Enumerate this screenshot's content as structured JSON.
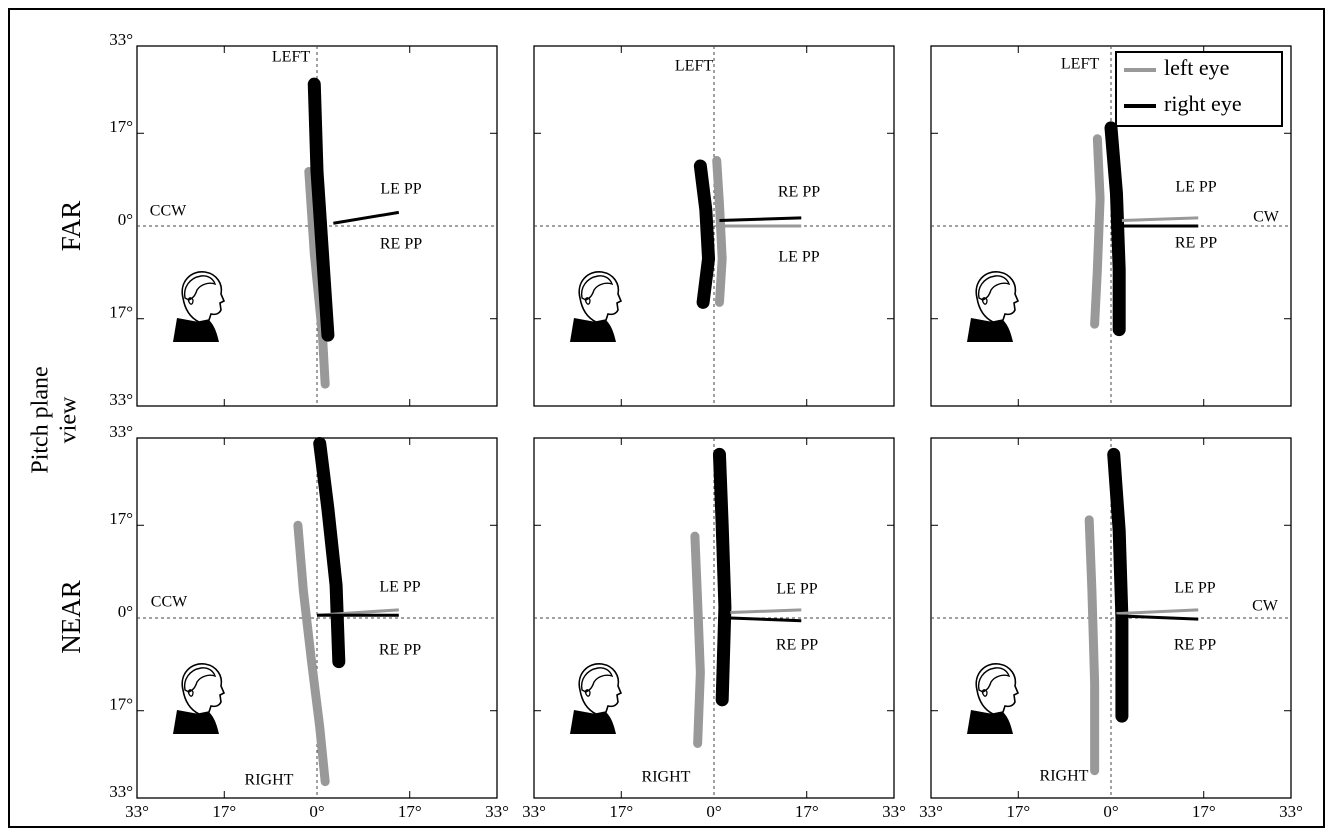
{
  "figure": {
    "row_labels": [
      "FAR",
      "NEAR"
    ],
    "y_label": [
      "Pitch plane",
      "view"
    ],
    "axes": {
      "xlim": [
        -33,
        33
      ],
      "ylim": [
        -33,
        33
      ],
      "xticks": [
        {
          "value": -33,
          "label": "33°"
        },
        {
          "value": -17,
          "label": "17°"
        },
        {
          "value": 0,
          "label": "0°"
        },
        {
          "value": 17,
          "label": "17°"
        },
        {
          "value": 33,
          "label": "33°"
        }
      ],
      "yticks": [
        {
          "value": -33,
          "label": "33°"
        },
        {
          "value": -17,
          "label": "17°"
        },
        {
          "value": 0,
          "label": "0°"
        },
        {
          "value": 17,
          "label": "17°"
        },
        {
          "value": 33,
          "label": "33°"
        }
      ]
    }
  },
  "chart_data": [
    {
      "type": "line",
      "annotations": [
        "LEFT",
        "CCW",
        "LE PP",
        "RE PP"
      ],
      "series": [
        {
          "name": "left eye",
          "color": "#999999",
          "x": [
            -1.5,
            -0.5,
            1,
            1.5
          ],
          "y": [
            10,
            -5,
            -20,
            -29
          ]
        },
        {
          "name": "right eye",
          "color": "#000000",
          "x": [
            -0.5,
            0,
            1,
            2
          ],
          "y": [
            26,
            10,
            -5,
            -20
          ]
        }
      ],
      "pp_lines": [
        {
          "color": "#000000",
          "x": [
            3,
            15
          ],
          "y": [
            0.5,
            2.5
          ]
        }
      ]
    },
    {
      "type": "line",
      "annotations": [
        "LEFT",
        "RE PP",
        "LE PP"
      ],
      "series": [
        {
          "name": "left eye",
          "color": "#999999",
          "x": [
            0.5,
            1,
            1.5,
            1
          ],
          "y": [
            12,
            4,
            -6,
            -14
          ]
        },
        {
          "name": "right eye",
          "color": "#000000",
          "x": [
            -2.5,
            -1.5,
            -1,
            -2
          ],
          "y": [
            11,
            3,
            -6,
            -14
          ]
        }
      ],
      "pp_lines": [
        {
          "color": "#999999",
          "x": [
            1,
            16
          ],
          "y": [
            0,
            0
          ]
        },
        {
          "color": "#000000",
          "x": [
            1,
            16
          ],
          "y": [
            1,
            1.5
          ]
        }
      ]
    },
    {
      "type": "line",
      "annotations": [
        "LEFT",
        "LE PP",
        "CW",
        "RE PP"
      ],
      "series": [
        {
          "name": "left eye",
          "color": "#999999",
          "x": [
            -2.5,
            -2,
            -2.5,
            -3
          ],
          "y": [
            16,
            5,
            -8,
            -18
          ]
        },
        {
          "name": "right eye",
          "color": "#000000",
          "x": [
            0,
            1,
            1.5,
            1.5
          ],
          "y": [
            18,
            6,
            -8,
            -19
          ]
        }
      ],
      "pp_lines": [
        {
          "color": "#999999",
          "x": [
            2,
            16
          ],
          "y": [
            1,
            1.5
          ]
        },
        {
          "color": "#000000",
          "x": [
            1,
            16
          ],
          "y": [
            0,
            0
          ]
        }
      ],
      "legend": true
    },
    {
      "type": "line",
      "annotations": [
        "CCW",
        "LE PP",
        "RE PP",
        "RIGHT"
      ],
      "series": [
        {
          "name": "left eye",
          "color": "#999999",
          "x": [
            -3.5,
            -2.5,
            -1,
            0.5,
            1.5
          ],
          "y": [
            17,
            5,
            -8,
            -20,
            -30
          ]
        },
        {
          "name": "right eye",
          "color": "#000000",
          "x": [
            0.5,
            2,
            3.5,
            4
          ],
          "y": [
            32,
            20,
            6,
            -8
          ]
        }
      ],
      "pp_lines": [
        {
          "color": "#999999",
          "x": [
            0,
            15
          ],
          "y": [
            0.5,
            1.5
          ]
        },
        {
          "color": "#000000",
          "x": [
            0,
            15
          ],
          "y": [
            0.5,
            0.5
          ]
        }
      ]
    },
    {
      "type": "line",
      "annotations": [
        "LE PP",
        "RE PP",
        "RIGHT"
      ],
      "series": [
        {
          "name": "left eye",
          "color": "#999999",
          "x": [
            -3.5,
            -3,
            -2.5,
            -3
          ],
          "y": [
            15,
            3,
            -10,
            -23
          ]
        },
        {
          "name": "right eye",
          "color": "#000000",
          "x": [
            1,
            1.5,
            2,
            1.5
          ],
          "y": [
            30,
            17,
            2,
            -15
          ]
        }
      ],
      "pp_lines": [
        {
          "color": "#999999",
          "x": [
            3,
            16
          ],
          "y": [
            1,
            1.5
          ]
        },
        {
          "color": "#000000",
          "x": [
            3,
            16
          ],
          "y": [
            0,
            -0.5
          ]
        }
      ]
    },
    {
      "type": "line",
      "annotations": [
        "LE PP",
        "CW",
        "RE PP",
        "RIGHT"
      ],
      "series": [
        {
          "name": "left eye",
          "color": "#999999",
          "x": [
            -4,
            -3.5,
            -3,
            -3
          ],
          "y": [
            18,
            5,
            -12,
            -28
          ]
        },
        {
          "name": "right eye",
          "color": "#000000",
          "x": [
            0.5,
            1.5,
            2,
            2
          ],
          "y": [
            30,
            16,
            0,
            -18
          ]
        }
      ],
      "pp_lines": [
        {
          "color": "#999999",
          "x": [
            1,
            16
          ],
          "y": [
            0.8,
            1.5
          ]
        },
        {
          "color": "#000000",
          "x": [
            1,
            16
          ],
          "y": [
            0.4,
            -0.2
          ]
        }
      ]
    }
  ]
}
